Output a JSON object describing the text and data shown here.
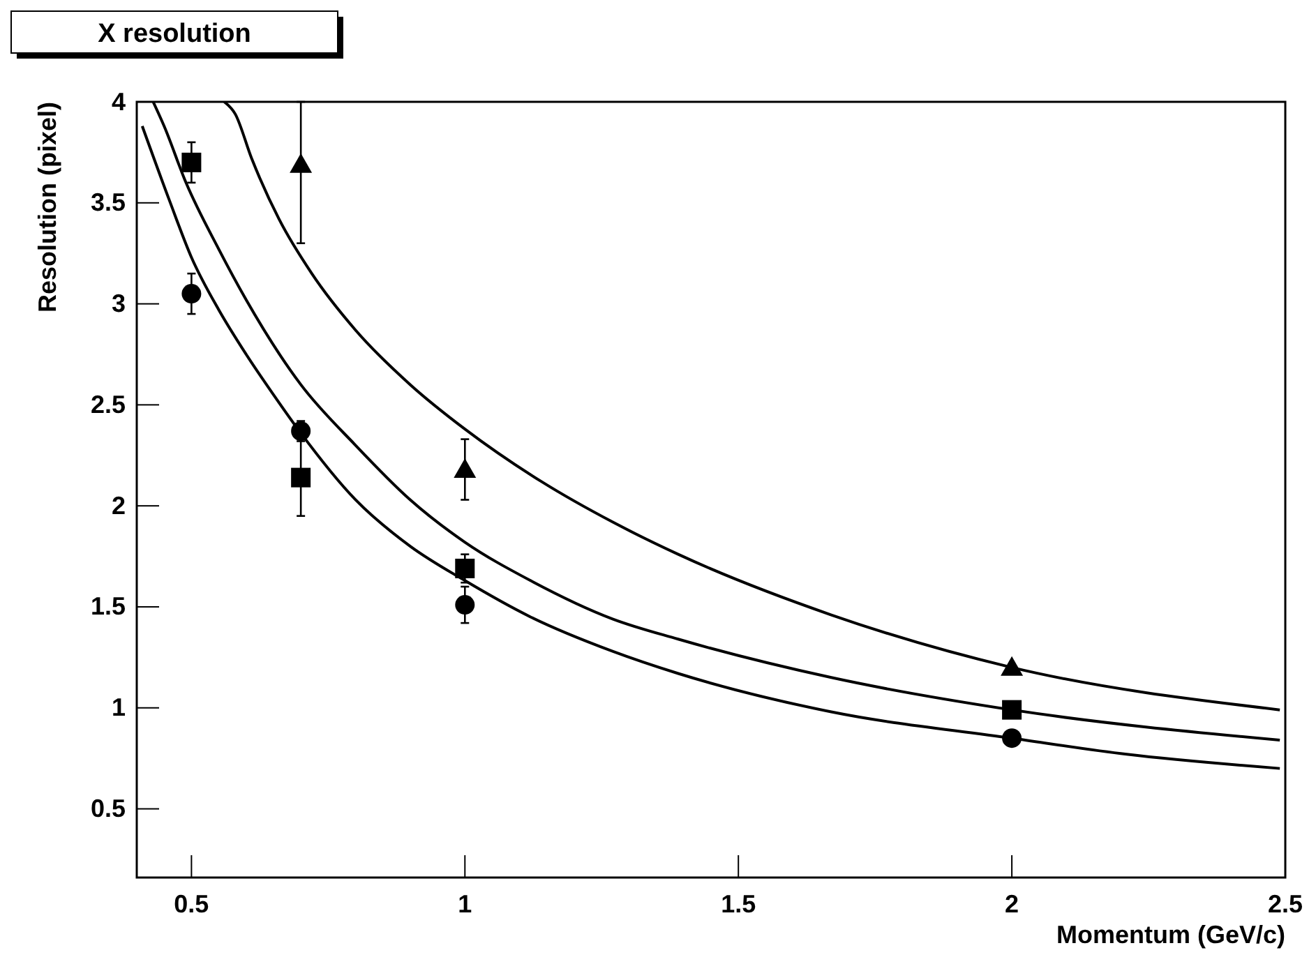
{
  "chart_data": {
    "type": "scatter",
    "title": "X resolution",
    "xlabel": "Momentum (GeV/c)",
    "ylabel": "Resolution (pixel)",
    "xlim": [
      0.4,
      2.5
    ],
    "ylim": [
      0.16,
      4
    ],
    "xticks": [
      0.5,
      1,
      1.5,
      2,
      2.5
    ],
    "yticks": [
      0.5,
      1,
      1.5,
      2,
      2.5,
      3,
      3.5,
      4
    ],
    "grid": false,
    "series": [
      {
        "type": "scatter",
        "marker": "circle",
        "color": "#000000",
        "x": [
          0.5,
          0.7,
          1,
          2
        ],
        "values": [
          3.05,
          2.37,
          1.51,
          0.85
        ],
        "errors": [
          0.1,
          0.05,
          0.09,
          null
        ]
      },
      {
        "type": "scatter",
        "marker": "square",
        "color": "#000000",
        "x": [
          0.5,
          0.7,
          1,
          2
        ],
        "values": [
          3.7,
          2.14,
          1.69,
          0.99
        ],
        "errors": [
          0.1,
          0.19,
          0.07,
          null
        ]
      },
      {
        "type": "scatter",
        "marker": "triangle",
        "color": "#000000",
        "x": [
          0.7,
          1,
          2
        ],
        "values": [
          3.69,
          2.18,
          1.2
        ],
        "errors": [
          [
            3.3,
            4.0
          ],
          0.15,
          null
        ]
      },
      {
        "type": "line",
        "marker": "none",
        "color": "#000000",
        "x": [
          0.41,
          0.46,
          0.5,
          0.55,
          0.6,
          0.65,
          0.7,
          0.8,
          0.9,
          1.0,
          1.12,
          1.27,
          1.39,
          1.67,
          2.0,
          2.21,
          2.49
        ],
        "values": [
          3.88,
          3.51,
          3.23,
          2.97,
          2.75,
          2.55,
          2.36,
          2.03,
          1.8,
          1.63,
          1.45,
          1.28,
          1.17,
          0.98,
          0.85,
          0.77,
          0.7
        ]
      },
      {
        "type": "line",
        "marker": "none",
        "color": "#000000",
        "x": [
          0.43,
          0.45,
          0.49,
          0.55,
          0.6,
          0.7,
          0.8,
          0.9,
          1.0,
          1.12,
          1.27,
          1.39,
          1.67,
          2.0,
          2.49
        ],
        "values": [
          4.0,
          3.88,
          3.6,
          3.27,
          3.02,
          2.6,
          2.3,
          2.03,
          1.82,
          1.63,
          1.44,
          1.34,
          1.15,
          0.99,
          0.84
        ]
      },
      {
        "type": "line",
        "marker": "none",
        "color": "#000000",
        "x": [
          0.56,
          0.58,
          0.61,
          0.66,
          0.72,
          0.8,
          0.9,
          1.0,
          1.14,
          1.27,
          1.39,
          1.67,
          2.0,
          2.49
        ],
        "values": [
          4.0,
          3.94,
          3.72,
          3.42,
          3.15,
          2.87,
          2.6,
          2.38,
          2.12,
          1.92,
          1.76,
          1.46,
          1.2,
          0.99
        ]
      }
    ]
  }
}
